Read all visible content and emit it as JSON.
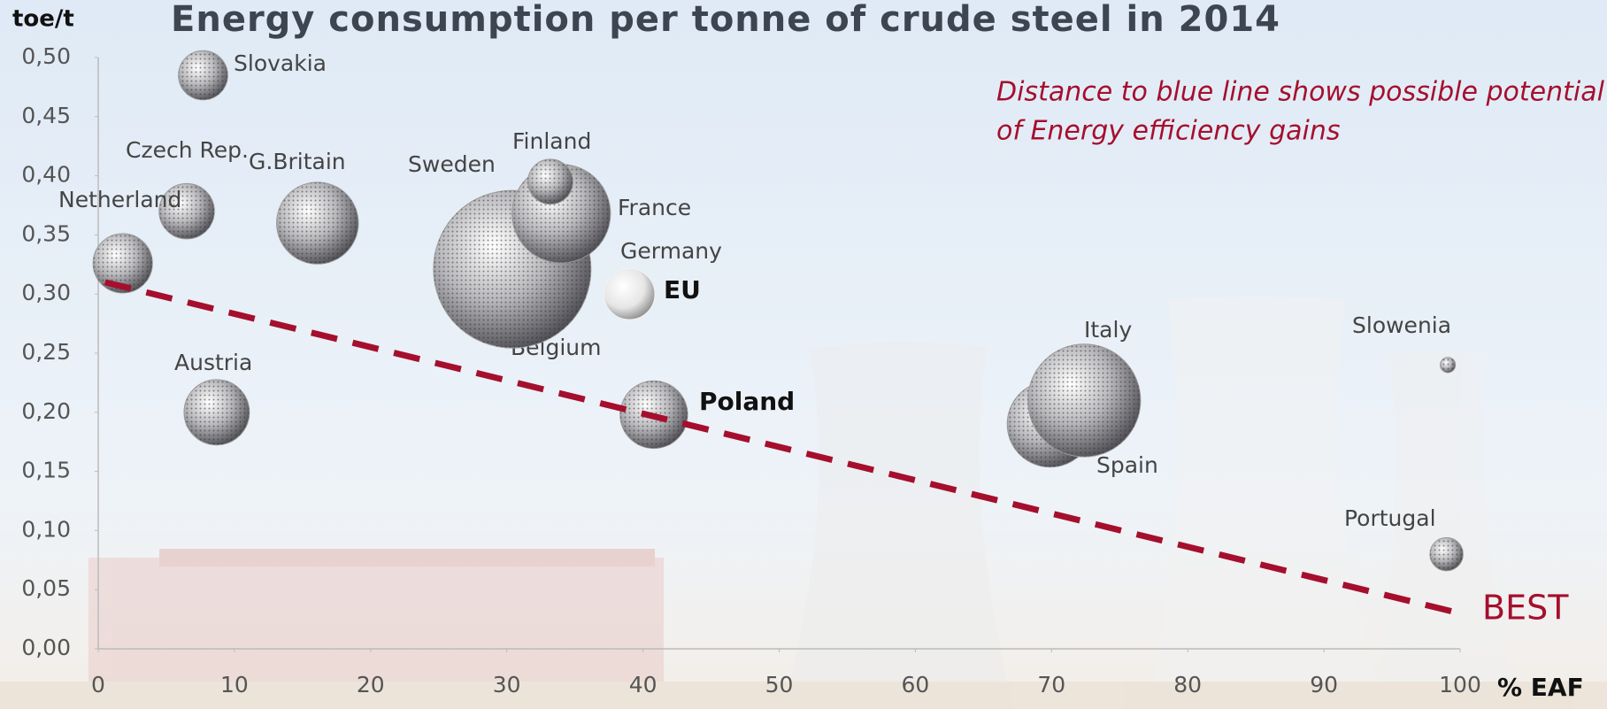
{
  "chart_data": {
    "type": "bubble",
    "title": "Energy consumption per tonne of crude steel in 2014",
    "y_label": "toe/t",
    "x_label": "% EAF",
    "annotations": [
      "Distance to blue line shows possible potential",
      "of Energy efficiency gains",
      "Sweden",
      "Belgium"
    ],
    "xlim": [
      0,
      100
    ],
    "xticks": [
      0,
      10,
      20,
      30,
      40,
      50,
      60,
      70,
      80,
      90,
      100
    ],
    "ylim": [
      0,
      0.5
    ],
    "yticks": [
      {
        "value": 0,
        "label": "0,00"
      },
      {
        "value": 0.05,
        "label": "0,05"
      },
      {
        "value": 0.1,
        "label": "0,10"
      },
      {
        "value": 0.15,
        "label": "0,15"
      },
      {
        "value": 0.2,
        "label": "0,20"
      },
      {
        "value": 0.25,
        "label": "0,25"
      },
      {
        "value": 0.3,
        "label": "0,30"
      },
      {
        "value": 0.35,
        "label": "0,35"
      },
      {
        "value": 0.4,
        "label": "0,40"
      },
      {
        "value": 0.45,
        "label": "0,45"
      },
      {
        "value": 0.5,
        "label": "0,50"
      }
    ],
    "series": [
      {
        "name": "Germany",
        "color": "#9a9a9a",
        "x": [
          30.4
        ],
        "values": [
          0.321
        ],
        "sizes": [
          43
        ]
      },
      {
        "name": "France",
        "color": "#9a9a9a",
        "x": [
          34
        ],
        "values": [
          0.368
        ],
        "sizes": [
          16.8
        ]
      },
      {
        "name": "Finland",
        "color": "#9a9a9a",
        "x": [
          33.2
        ],
        "values": [
          0.395
        ],
        "sizes": [
          3.5
        ]
      },
      {
        "name": "Slovakia",
        "color": "#9a9a9a",
        "x": [
          7.7
        ],
        "values": [
          0.485
        ],
        "sizes": [
          4.2
        ]
      },
      {
        "name": "Czech Rep.",
        "color": "#9a9a9a",
        "x": [
          6.5
        ],
        "values": [
          0.37
        ],
        "sizes": [
          5.3
        ]
      },
      {
        "name": "G.Britain",
        "color": "#9a9a9a",
        "x": [
          16.1
        ],
        "values": [
          0.36
        ],
        "sizes": [
          11.6
        ]
      },
      {
        "name": "Netherland",
        "color": "#9a9a9a",
        "x": [
          1.8
        ],
        "values": [
          0.326
        ],
        "sizes": [
          6.1
        ]
      },
      {
        "name": "Austria",
        "color": "#9a9a9a",
        "x": [
          8.7
        ],
        "values": [
          0.2
        ],
        "sizes": [
          7.4
        ]
      },
      {
        "name": "EU",
        "color": "#f2f2f2",
        "x": [
          39
        ],
        "values": [
          0.3
        ],
        "sizes": [
          4.5
        ]
      },
      {
        "name": "Poland",
        "color": "#9a9a9a",
        "x": [
          40.8
        ],
        "values": [
          0.198
        ],
        "sizes": [
          7.9
        ]
      },
      {
        "name": "Spain",
        "color": "#9a9a9a",
        "x": [
          69.9
        ],
        "values": [
          0.19
        ],
        "sizes": [
          12.8
        ]
      },
      {
        "name": "Italy",
        "color": "#9a9a9a",
        "x": [
          72.4
        ],
        "values": [
          0.21
        ],
        "sizes": [
          22
        ]
      },
      {
        "name": "Slowenia",
        "color": "#9a9a9a",
        "x": [
          99.1
        ],
        "values": [
          0.24
        ],
        "sizes": [
          0.4
        ]
      },
      {
        "name": "Portugal",
        "color": "#9a9a9a",
        "x": [
          99
        ],
        "values": [
          0.08
        ],
        "sizes": [
          1.9
        ]
      }
    ],
    "trend_line": {
      "name": "BEST",
      "color": "#a50f2d",
      "x": [
        0.5,
        100
      ],
      "values": [
        0.31,
        0.03
      ]
    }
  }
}
